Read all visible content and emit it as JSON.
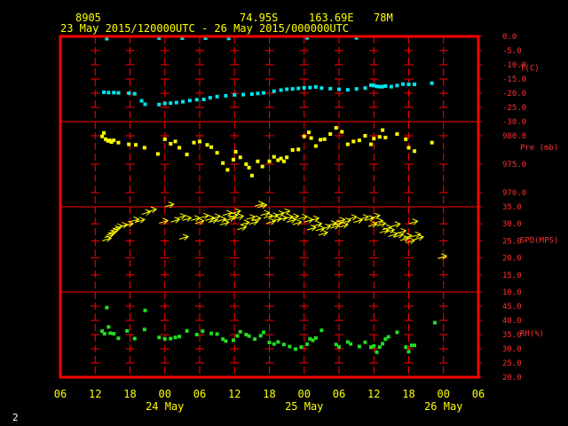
{
  "header": {
    "station": "8905",
    "lat": "74.95S",
    "lon": "163.69E",
    "elev": "78M",
    "period": "23 May 2015/120000UTC - 26 May 2015/000000UTC"
  },
  "corner_label": "2",
  "colors": {
    "frame": "#ff0000",
    "grid": "#ff0000",
    "temperature": "#00e5ee",
    "pressure": "#ffff00",
    "wind": "#ffff00",
    "humidity": "#22dd22",
    "axis_text": "#ffff00",
    "panel_labels": "#ff3030"
  },
  "chart_data": {
    "type": "scatter",
    "x_unit": "hours since 2015-05-23 06 UTC",
    "xlim": [
      0,
      72
    ],
    "x_tick_labels": [
      "06",
      "12",
      "18",
      "00",
      "06",
      "12",
      "18",
      "00",
      "06",
      "12",
      "18",
      "00",
      "06"
    ],
    "x_tick_hours": [
      0,
      6,
      12,
      18,
      24,
      30,
      36,
      42,
      48,
      54,
      60,
      66,
      72
    ],
    "date_labels": [
      {
        "text": "24 May",
        "hour": 18
      },
      {
        "text": "25 May",
        "hour": 42
      },
      {
        "text": "26 May",
        "hour": 66
      }
    ],
    "panels": [
      {
        "id": "temperature",
        "label": "T(C)",
        "ylim": [
          -30,
          0
        ],
        "ticks": [
          "0.0",
          "-5.0",
          "-10.0",
          "-15.0",
          "-20.0",
          "-25.0",
          "-30.0"
        ],
        "tick_values": [
          0,
          -5,
          -10,
          -15,
          -20,
          -25,
          -30
        ],
        "label_value": -11.1,
        "points": [
          [
            7.5,
            -19.7
          ],
          [
            8.3,
            -19.8
          ],
          [
            9.2,
            -19.8
          ],
          [
            10.0,
            -19.9
          ],
          [
            11.8,
            -20.0
          ],
          [
            12.8,
            -20.2
          ],
          [
            14.0,
            -22.7
          ],
          [
            14.6,
            -23.9
          ],
          [
            17.0,
            -24.0
          ],
          [
            18.0,
            -23.6
          ],
          [
            19.0,
            -23.5
          ],
          [
            20.0,
            -23.3
          ],
          [
            21.1,
            -23.0
          ],
          [
            22.3,
            -22.6
          ],
          [
            23.5,
            -22.3
          ],
          [
            24.7,
            -22.2
          ],
          [
            25.8,
            -21.6
          ],
          [
            27.0,
            -21.2
          ],
          [
            28.5,
            -20.9
          ],
          [
            30.0,
            -20.6
          ],
          [
            31.5,
            -20.5
          ],
          [
            33.0,
            -20.3
          ],
          [
            34.0,
            -20.1
          ],
          [
            35.0,
            -19.9
          ],
          [
            36.8,
            -19.3
          ],
          [
            38.0,
            -18.9
          ],
          [
            39.0,
            -18.6
          ],
          [
            40.0,
            -18.5
          ],
          [
            41.0,
            -18.3
          ],
          [
            42.0,
            -18.1
          ],
          [
            43.0,
            -18.0
          ],
          [
            44.0,
            -17.8
          ],
          [
            45.0,
            -18.2
          ],
          [
            46.5,
            -18.4
          ],
          [
            48.0,
            -18.6
          ],
          [
            49.5,
            -18.8
          ],
          [
            51.0,
            -18.5
          ],
          [
            52.5,
            -18.2
          ],
          [
            53.5,
            -17.2
          ],
          [
            54.0,
            -17.3
          ],
          [
            54.5,
            -17.6
          ],
          [
            55.0,
            -17.7
          ],
          [
            55.5,
            -17.7
          ],
          [
            56.0,
            -17.5
          ],
          [
            57.0,
            -17.7
          ],
          [
            58.0,
            -17.3
          ],
          [
            59.0,
            -16.8
          ],
          [
            60.0,
            -16.9
          ],
          [
            61.0,
            -16.9
          ],
          [
            64.0,
            -16.5
          ],
          [
            8.0,
            -0.8
          ],
          [
            17.0,
            -0.6
          ],
          [
            21.0,
            -0.6
          ],
          [
            25.0,
            -0.6
          ],
          [
            29.0,
            -0.7
          ],
          [
            42.5,
            -0.5
          ],
          [
            51.0,
            -0.5
          ]
        ]
      },
      {
        "id": "pressure",
        "label": "Pre (mb)",
        "ylim": [
          967.5,
          982.5
        ],
        "ticks": [
          "980.0",
          "975.0",
          "970.0"
        ],
        "tick_values": [
          980,
          975,
          970
        ],
        "label_value": 978.0,
        "points": [
          [
            7.2,
            979.9
          ],
          [
            7.5,
            980.5
          ],
          [
            7.8,
            979.4
          ],
          [
            8.2,
            979.1
          ],
          [
            8.5,
            979.2
          ],
          [
            8.8,
            978.9
          ],
          [
            9.2,
            979.2
          ],
          [
            10.0,
            978.8
          ],
          [
            11.8,
            978.5
          ],
          [
            13.0,
            978.4
          ],
          [
            14.5,
            977.9
          ],
          [
            16.8,
            976.8
          ],
          [
            18.0,
            979.4
          ],
          [
            19.0,
            978.6
          ],
          [
            19.8,
            979.0
          ],
          [
            20.5,
            977.9
          ],
          [
            21.8,
            976.7
          ],
          [
            23.0,
            978.8
          ],
          [
            24.0,
            979.0
          ],
          [
            25.3,
            978.4
          ],
          [
            26.0,
            978.0
          ],
          [
            27.0,
            977.0
          ],
          [
            28.0,
            975.2
          ],
          [
            28.8,
            974.0
          ],
          [
            29.8,
            975.8
          ],
          [
            30.2,
            977.2
          ],
          [
            31.0,
            976.2
          ],
          [
            32.0,
            975.0
          ],
          [
            32.5,
            974.4
          ],
          [
            33.0,
            973.0
          ],
          [
            34.0,
            975.5
          ],
          [
            34.8,
            974.6
          ],
          [
            36.0,
            975.5
          ],
          [
            36.8,
            976.3
          ],
          [
            37.5,
            975.7
          ],
          [
            38.0,
            976.0
          ],
          [
            38.5,
            975.5
          ],
          [
            39.0,
            976.2
          ],
          [
            40.0,
            977.5
          ],
          [
            41.0,
            977.6
          ],
          [
            42.0,
            979.9
          ],
          [
            42.8,
            980.6
          ],
          [
            43.2,
            979.6
          ],
          [
            44.0,
            978.2
          ],
          [
            44.8,
            979.3
          ],
          [
            45.5,
            979.4
          ],
          [
            46.5,
            980.3
          ],
          [
            47.5,
            981.4
          ],
          [
            48.5,
            980.7
          ],
          [
            49.5,
            978.5
          ],
          [
            50.5,
            979.0
          ],
          [
            51.5,
            979.2
          ],
          [
            52.5,
            980.0
          ],
          [
            53.5,
            978.5
          ],
          [
            54.0,
            979.5
          ],
          [
            55.0,
            979.8
          ],
          [
            55.5,
            981.0
          ],
          [
            56.0,
            979.7
          ],
          [
            58.0,
            980.3
          ],
          [
            59.5,
            979.4
          ],
          [
            60.0,
            977.9
          ],
          [
            61.0,
            977.3
          ],
          [
            64.0,
            978.8
          ]
        ]
      },
      {
        "id": "wind",
        "label": "SPD(MPS)",
        "ylim": [
          10,
          35
        ],
        "ticks": [
          "35.0",
          "30.0",
          "25.0",
          "20.0",
          "15.0",
          "10.0"
        ],
        "tick_values": [
          35,
          30,
          25,
          20,
          15,
          10
        ],
        "label_value": 25.2,
        "arrow_shape": "open",
        "points": [
          [
            7.2,
            25.0
          ],
          [
            7.6,
            26.0
          ],
          [
            8.0,
            26.7
          ],
          [
            8.4,
            27.3
          ],
          [
            8.8,
            28.0
          ],
          [
            9.2,
            28.6
          ],
          [
            10.0,
            29.0
          ],
          [
            11.0,
            29.3
          ],
          [
            12.0,
            30.6
          ],
          [
            13.0,
            30.5
          ],
          [
            14.0,
            32.8
          ],
          [
            15.0,
            33.5
          ],
          [
            17.0,
            30.2
          ],
          [
            18.0,
            35.0
          ],
          [
            19.0,
            30.5
          ],
          [
            20.0,
            31.6
          ],
          [
            20.5,
            25.5
          ],
          [
            21.0,
            31.0
          ],
          [
            22.5,
            31.0
          ],
          [
            23.2,
            30.1
          ],
          [
            24.0,
            31.7
          ],
          [
            25.0,
            31.0
          ],
          [
            25.5,
            30.4
          ],
          [
            26.0,
            31.5
          ],
          [
            27.0,
            30.7
          ],
          [
            27.5,
            29.7
          ],
          [
            28.0,
            32.5
          ],
          [
            28.5,
            31.0
          ],
          [
            29.0,
            31.8
          ],
          [
            29.5,
            33.0
          ],
          [
            30.0,
            31.5
          ],
          [
            30.5,
            28.3
          ],
          [
            31.0,
            29.7
          ],
          [
            32.0,
            31.3
          ],
          [
            32.5,
            29.9
          ],
          [
            33.0,
            30.9
          ],
          [
            33.5,
            35.2
          ],
          [
            34.0,
            34.8
          ],
          [
            34.5,
            32.5
          ],
          [
            35.0,
            31.7
          ],
          [
            35.5,
            30.1
          ],
          [
            36.0,
            31.8
          ],
          [
            36.5,
            30.8
          ],
          [
            37.0,
            32.4
          ],
          [
            37.5,
            31.1
          ],
          [
            38.0,
            33.0
          ],
          [
            38.5,
            31.4
          ],
          [
            39.0,
            30.5
          ],
          [
            39.5,
            31.5
          ],
          [
            40.0,
            29.8
          ],
          [
            41.0,
            31.4
          ],
          [
            42.0,
            30.5
          ],
          [
            42.5,
            28.2
          ],
          [
            43.0,
            30.9
          ],
          [
            43.5,
            29.3
          ],
          [
            44.0,
            28.0
          ],
          [
            44.5,
            26.7
          ],
          [
            45.0,
            28.5
          ],
          [
            46.0,
            29.5
          ],
          [
            46.5,
            28.7
          ],
          [
            47.0,
            29.6
          ],
          [
            47.5,
            30.5
          ],
          [
            48.0,
            29.0
          ],
          [
            48.5,
            30.3
          ],
          [
            49.5,
            31.3
          ],
          [
            50.5,
            30.4
          ],
          [
            51.5,
            31.3
          ],
          [
            52.5,
            31.0
          ],
          [
            53.0,
            29.2
          ],
          [
            53.5,
            31.7
          ],
          [
            54.0,
            30.2
          ],
          [
            54.5,
            29.4
          ],
          [
            55.0,
            27.4
          ],
          [
            55.5,
            28.3
          ],
          [
            56.0,
            27.5
          ],
          [
            56.5,
            26.3
          ],
          [
            57.0,
            29.2
          ],
          [
            57.5,
            26.1
          ],
          [
            58.0,
            27.2
          ],
          [
            58.5,
            25.1
          ],
          [
            59.0,
            25.8
          ],
          [
            59.5,
            24.4
          ],
          [
            60.0,
            30.0
          ],
          [
            60.5,
            26.2
          ],
          [
            61.0,
            25.4
          ],
          [
            65.0,
            19.8
          ]
        ]
      },
      {
        "id": "humidity",
        "label": "RH(%)",
        "ylim": [
          20,
          50
        ],
        "ticks": [
          "45.0",
          "40.0",
          "35.0",
          "30.0",
          "25.0",
          "20.0"
        ],
        "tick_values": [
          45,
          40,
          35,
          30,
          25,
          20
        ],
        "label_value": 35.4,
        "points": [
          [
            7.2,
            36.2
          ],
          [
            7.6,
            35.3
          ],
          [
            8.0,
            44.5
          ],
          [
            8.3,
            37.7
          ],
          [
            8.6,
            35.5
          ],
          [
            9.2,
            35.3
          ],
          [
            10.0,
            33.7
          ],
          [
            11.5,
            36.3
          ],
          [
            12.8,
            33.6
          ],
          [
            14.5,
            36.8
          ],
          [
            14.6,
            43.5
          ],
          [
            17.0,
            34.0
          ],
          [
            18.0,
            33.5
          ],
          [
            19.0,
            33.6
          ],
          [
            19.8,
            34.0
          ],
          [
            20.5,
            34.3
          ],
          [
            21.8,
            36.3
          ],
          [
            23.5,
            35.0
          ],
          [
            24.5,
            36.2
          ],
          [
            26.0,
            35.4
          ],
          [
            27.0,
            35.2
          ],
          [
            28.0,
            33.4
          ],
          [
            28.5,
            32.7
          ],
          [
            29.8,
            33.0
          ],
          [
            30.5,
            34.5
          ],
          [
            31.0,
            36.0
          ],
          [
            32.0,
            35.0
          ],
          [
            32.5,
            34.5
          ],
          [
            33.5,
            33.4
          ],
          [
            34.5,
            34.6
          ],
          [
            35.0,
            35.8
          ],
          [
            36.0,
            32.2
          ],
          [
            36.8,
            31.7
          ],
          [
            37.5,
            32.4
          ],
          [
            38.5,
            31.5
          ],
          [
            39.5,
            30.8
          ],
          [
            40.5,
            29.9
          ],
          [
            41.5,
            30.6
          ],
          [
            42.5,
            31.6
          ],
          [
            43.0,
            33.5
          ],
          [
            43.5,
            33.0
          ],
          [
            44.0,
            33.8
          ],
          [
            45.0,
            36.5
          ],
          [
            47.5,
            31.5
          ],
          [
            48.0,
            30.7
          ],
          [
            49.5,
            32.4
          ],
          [
            50.0,
            31.7
          ],
          [
            51.5,
            30.8
          ],
          [
            52.5,
            32.3
          ],
          [
            53.5,
            30.6
          ],
          [
            54.0,
            31.0
          ],
          [
            54.5,
            28.8
          ],
          [
            55.0,
            30.6
          ],
          [
            55.5,
            31.8
          ],
          [
            56.0,
            33.4
          ],
          [
            56.5,
            34.2
          ],
          [
            58.0,
            35.8
          ],
          [
            59.5,
            30.6
          ],
          [
            60.0,
            29.0
          ],
          [
            60.5,
            31.2
          ],
          [
            61.0,
            31.2
          ],
          [
            64.5,
            39.2
          ]
        ]
      }
    ]
  }
}
